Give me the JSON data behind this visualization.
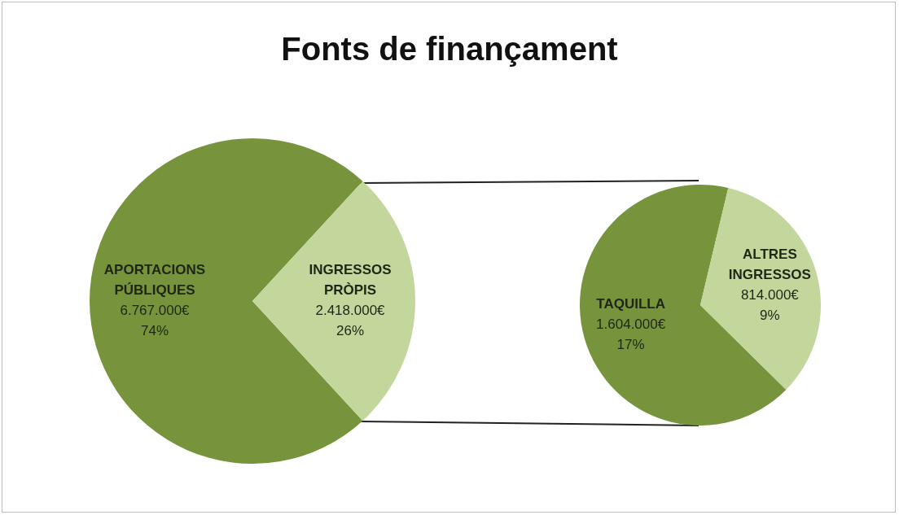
{
  "chart_data": [
    {
      "type": "pie",
      "title": "Fonts de finançament",
      "categories": [
        "APORTACIONS PÚBLIQUES",
        "INGRESSOS PRÒPIS"
      ],
      "values": [
        6767000,
        2418000
      ],
      "colors": [
        "#77933c",
        "#c3d69b"
      ],
      "value_labels": [
        "6.767.000€\n74%",
        "2.418.000€\n26%"
      ]
    },
    {
      "type": "pie",
      "categories": [
        "TAQUILLA",
        "ALTRES INGRESSOS"
      ],
      "values": [
        1604000,
        814000
      ],
      "colors": [
        "#77933c",
        "#c3d69b"
      ],
      "value_labels": [
        "1.604.000€\n17%",
        "814.000€\n9%"
      ]
    }
  ]
}
